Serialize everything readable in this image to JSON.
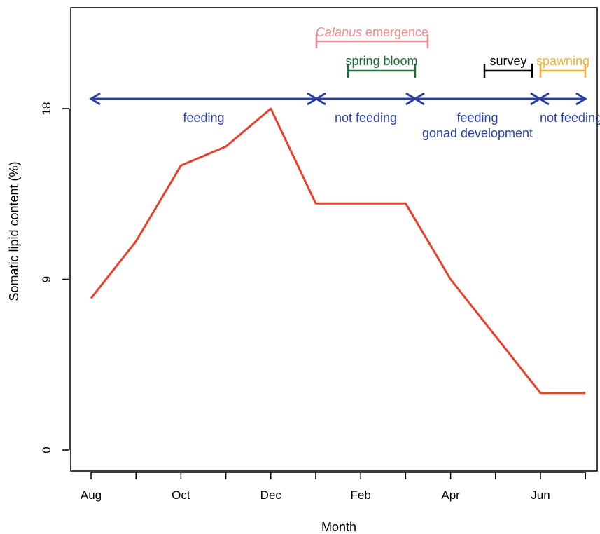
{
  "chart_data": {
    "type": "line",
    "title": "",
    "xlabel": "Month",
    "ylabel": "Somatic lipid content (%)",
    "x_months": [
      "Aug",
      "Sep",
      "Oct",
      "Nov",
      "Dec",
      "Jan",
      "Feb",
      "Mar",
      "Apr",
      "May",
      "Jun",
      "Jul"
    ],
    "x_tick_labels": [
      "Aug",
      "Oct",
      "Dec",
      "Feb",
      "Apr",
      "Jun"
    ],
    "y_ticks": [
      0,
      9,
      18
    ],
    "ylim": [
      0,
      18
    ],
    "grid": false,
    "series": [
      {
        "color": "#e8402a",
        "points": [
          {
            "x": "Aug",
            "y": 8
          },
          {
            "x": "Sep",
            "y": 11
          },
          {
            "x": "Oct",
            "y": 15
          },
          {
            "x": "Nov",
            "y": 16
          },
          {
            "x": "Dec",
            "y": 18
          },
          {
            "x": "Jan",
            "y": 13
          },
          {
            "x": "Feb",
            "y": 13
          },
          {
            "x": "Mar",
            "y": 13
          },
          {
            "x": "Apr",
            "y": 9
          },
          {
            "x": "May",
            "y": 6
          },
          {
            "x": "Jun",
            "y": 3
          },
          {
            "x": "Jul",
            "y": 3
          }
        ]
      }
    ],
    "events": [
      {
        "label_italic": "Calanus",
        "label": " emergence",
        "start": "Jan",
        "end": "Mar",
        "color": "#f08a8a"
      },
      {
        "label_italic": "",
        "label": "spring bloom",
        "start": "Jan",
        "end": "Mar",
        "color": "#1e6e3a"
      },
      {
        "label_italic": "",
        "label": "survey",
        "start": "May",
        "end": "Jun",
        "color": "#000000"
      },
      {
        "label_italic": "",
        "label": "spawning",
        "start": "Jun",
        "end": "Jul",
        "color": "#f2b135"
      }
    ],
    "phases": [
      {
        "lines": [
          "feeding"
        ],
        "start": "Aug",
        "end": "Jan",
        "color": "#2a3fa0"
      },
      {
        "lines": [
          "not feeding"
        ],
        "start": "Jan",
        "end": "Mar",
        "color": "#2a3fa0"
      },
      {
        "lines": [
          "feeding",
          "gonad development"
        ],
        "start": "Mar",
        "end": "Jun",
        "color": "#2a3fa0"
      },
      {
        "lines": [
          "not feeding"
        ],
        "start": "Jun",
        "end": "Jul",
        "color": "#2a3fa0"
      }
    ]
  }
}
